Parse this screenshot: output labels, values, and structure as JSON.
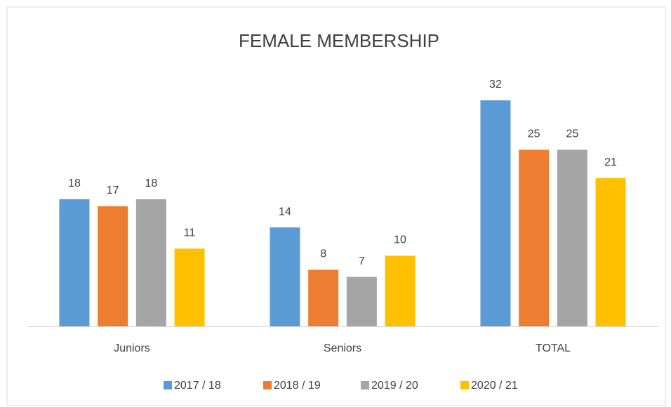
{
  "chart_data": {
    "type": "bar",
    "title": "FEMALE MEMBERSHIP",
    "categories": [
      "Juniors",
      "Seniors",
      "TOTAL"
    ],
    "series": [
      {
        "name": "2017 / 18",
        "color": "#5b9bd5",
        "values": [
          18,
          14,
          32
        ]
      },
      {
        "name": "2018 / 19",
        "color": "#ed7d31",
        "values": [
          17,
          8,
          25
        ]
      },
      {
        "name": "2019 / 20",
        "color": "#a5a5a5",
        "values": [
          18,
          7,
          25
        ]
      },
      {
        "name": "2020 / 21",
        "color": "#ffc000",
        "values": [
          11,
          10,
          21
        ]
      }
    ],
    "ylim": [
      0,
      32
    ],
    "legend": "bottom"
  }
}
